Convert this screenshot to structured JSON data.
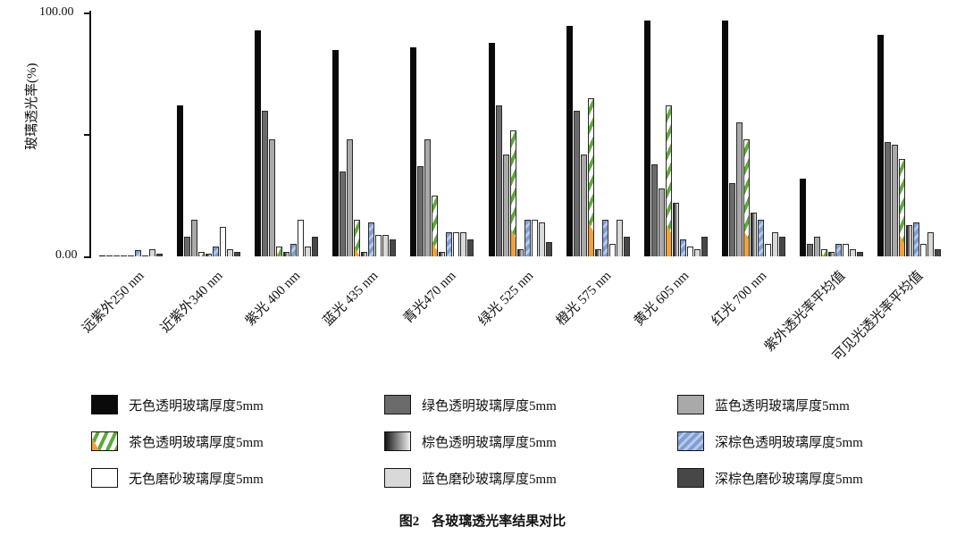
{
  "caption": {
    "prefix": "图2",
    "text": "各玻璃透光率结果对比"
  },
  "axis": {
    "ylabel": "玻璃透光率(%)",
    "ytick_top_label": "100.00",
    "ytick_bottom_label": "0.00"
  },
  "chart_data": {
    "type": "bar",
    "title": "图2 各玻璃透光率结果对比",
    "xlabel": "",
    "ylabel": "玻璃透光率(%)",
    "ylim": [
      0,
      100
    ],
    "yticks": [
      {
        "value": 100,
        "label": "100.00"
      },
      {
        "value": 50,
        "label": ""
      },
      {
        "value": 0,
        "label": "0.00"
      }
    ],
    "grid": false,
    "legend_position": "bottom",
    "legend_columns": 3,
    "categories": [
      "远紫外250 nm",
      "近紫外340 nm",
      "紫光 400 nm",
      "蓝光 435 nm",
      "青光470 nm",
      "绿光 525 nm",
      "橙光 575 nm",
      "黄光 605 nm",
      "红光 700 nm",
      "紫外透光率平均值",
      "可见光透光率平均值"
    ],
    "series": [
      {
        "name": "无色透明玻璃厚度5mm",
        "fill": "black",
        "color": "#0a0a0a",
        "values": [
          0.5,
          62,
          93,
          85,
          86,
          88,
          95,
          97,
          97,
          32,
          91
        ]
      },
      {
        "name": "绿色透明玻璃厚度5mm",
        "fill": "dgray",
        "color": "#6b6b6b",
        "values": [
          0.3,
          8,
          60,
          35,
          37,
          62,
          60,
          38,
          30,
          5,
          47
        ]
      },
      {
        "name": "蓝色透明玻璃厚度5mm",
        "fill": "lgray",
        "color": "#a9a9a9",
        "values": [
          0.3,
          15,
          48,
          48,
          48,
          42,
          42,
          28,
          55,
          8,
          46
        ]
      },
      {
        "name": "茶色透明玻璃厚度5mm",
        "fill": "tea",
        "color": "#5fa83c",
        "color2": "#f0a23b",
        "pattern": "green-diagonal-stripes-with-orange",
        "values": [
          0.2,
          2,
          4,
          15,
          25,
          52,
          65,
          62,
          48,
          3,
          40
        ]
      },
      {
        "name": "棕色透明玻璃厚度5mm",
        "fill": "brown",
        "color": "#151515",
        "pattern": "dark-to-light-gradient",
        "values": [
          0.2,
          1,
          2,
          2,
          2,
          3,
          3,
          22,
          18,
          2,
          13
        ]
      },
      {
        "name": "深棕色透明玻璃厚度5mm",
        "fill": "dblue",
        "color": "#7f9fd2",
        "pattern": "blue-diagonal-stripes",
        "values": [
          2.5,
          4,
          5,
          14,
          10,
          15,
          15,
          7,
          15,
          5,
          14
        ]
      },
      {
        "name": "无色磨砂玻璃厚度5mm",
        "fill": "white",
        "color": "#ffffff",
        "values": [
          0.3,
          12,
          15,
          9,
          10,
          15,
          5,
          4,
          5,
          5,
          5
        ]
      },
      {
        "name": "蓝色磨砂玻璃厚度5mm",
        "fill": "flgray",
        "color": "#d9d9d9",
        "values": [
          3,
          3,
          4,
          9,
          10,
          14,
          15,
          3,
          10,
          3,
          10
        ]
      },
      {
        "name": "深棕色磨砂玻璃厚度5mm",
        "fill": "fdgray",
        "color": "#474747",
        "values": [
          1,
          2,
          8,
          7,
          7,
          6,
          8,
          8,
          8,
          2,
          3
        ]
      }
    ]
  }
}
